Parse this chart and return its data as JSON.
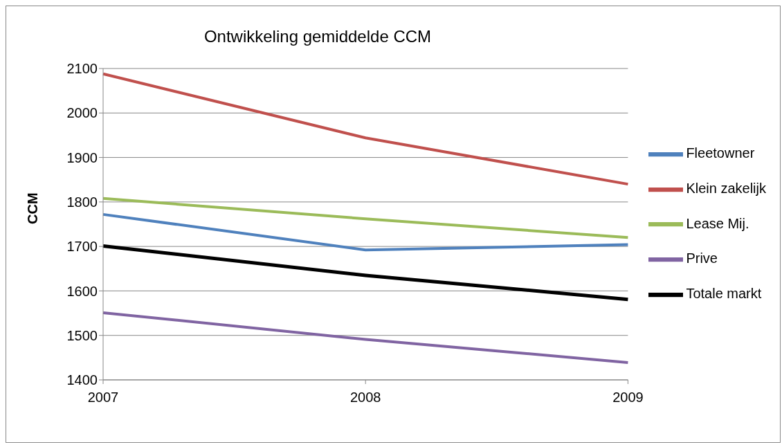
{
  "chart_data": {
    "type": "line",
    "title": "Ontwikkeling gemiddelde CCM",
    "ylabel": "CCM",
    "categories": [
      "2007",
      "2008",
      "2009"
    ],
    "series": [
      {
        "name": "Fleetowner",
        "color": "#4f81bd",
        "values": [
          1772,
          1692,
          1704
        ]
      },
      {
        "name": "Klein zakelijk",
        "color": "#c0504d",
        "values": [
          2088,
          1944,
          1840
        ]
      },
      {
        "name": "Lease Mij.",
        "color": "#9bbb59",
        "values": [
          1808,
          1762,
          1720
        ]
      },
      {
        "name": "Prive",
        "color": "#8064a2",
        "values": [
          1551,
          1491,
          1439
        ]
      },
      {
        "name": "Totale markt",
        "color": "#000000",
        "values": [
          1701,
          1635,
          1581
        ]
      }
    ],
    "ylim": [
      1400,
      2100
    ],
    "yticks": [
      1400,
      1500,
      1600,
      1700,
      1800,
      1900,
      2000,
      2100
    ],
    "grid": "y",
    "legend": "right",
    "marker": "none",
    "line_style": "solid"
  }
}
